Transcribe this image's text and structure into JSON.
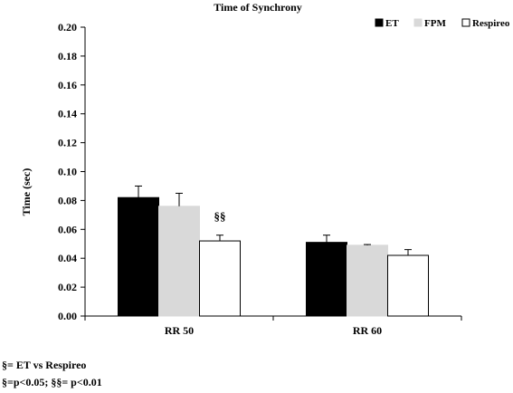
{
  "chart_data": {
    "type": "bar",
    "title": "Time of Synchrony",
    "ylabel": "Time (sec)",
    "xlabel": "",
    "ylim": [
      0,
      0.2
    ],
    "yticks": [
      "0.00",
      "0.02",
      "0.04",
      "0.06",
      "0.08",
      "0.10",
      "0.12",
      "0.14",
      "0.16",
      "0.18",
      "0.20"
    ],
    "categories": [
      "RR 50",
      "RR 60"
    ],
    "series": [
      {
        "name": "ET",
        "color": "#000000",
        "values": [
          0.082,
          0.051
        ],
        "errors": [
          0.008,
          0.005
        ]
      },
      {
        "name": "FPM",
        "color": "#d9d9d9",
        "values": [
          0.076,
          0.049
        ],
        "errors": [
          0.009,
          0.0005
        ]
      },
      {
        "name": "Respireo",
        "color": "#ffffff",
        "values": [
          0.052,
          0.042
        ],
        "errors": [
          0.004,
          0.004
        ]
      }
    ],
    "annotations": [
      {
        "text": "§§",
        "category": "RR 50",
        "series": "Respireo"
      }
    ],
    "legend_position": "top-right",
    "grid": false
  },
  "footnotes": {
    "line1": "§= ET vs Respireo",
    "line2": "§=p<0.05; §§= p<0.01"
  }
}
